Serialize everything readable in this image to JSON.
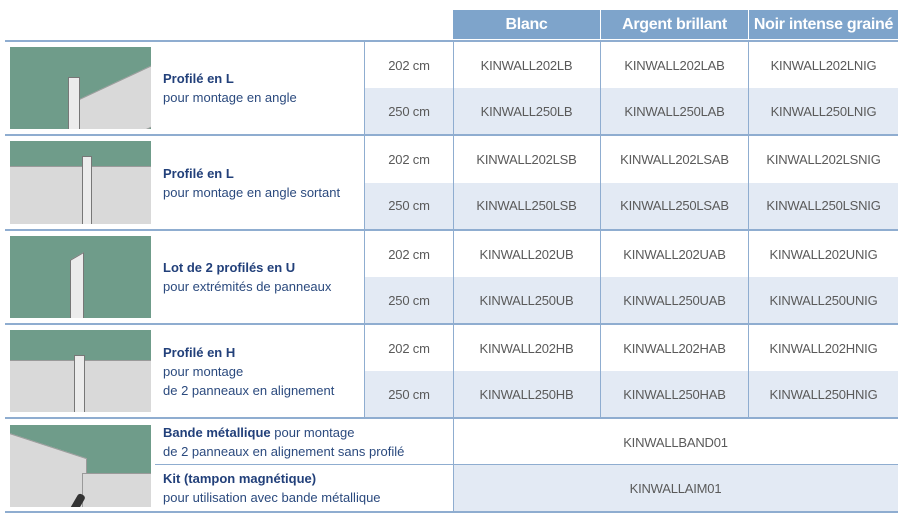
{
  "header": {
    "columns": [
      "Blanc",
      "Argent brillant",
      "Noir intense grainé"
    ]
  },
  "products": [
    {
      "title": "Profilé en L",
      "subtitle": [
        "pour montage en angle"
      ],
      "image": "corner-profile-image",
      "rows": [
        {
          "size": "202 cm",
          "codes": [
            "KINWALL202LB",
            "KINWALL202LAB",
            "KINWALL202LNIG"
          ]
        },
        {
          "size": "250 cm",
          "codes": [
            "KINWALL250LB",
            "KINWALL250LAB",
            "KINWALL250LNIG"
          ]
        }
      ]
    },
    {
      "title": "Profilé en L",
      "subtitle": [
        "pour montage en angle sortant"
      ],
      "image": "outer-corner-profile-image",
      "rows": [
        {
          "size": "202 cm",
          "codes": [
            "KINWALL202LSB",
            "KINWALL202LSAB",
            "KINWALL202LSNIG"
          ]
        },
        {
          "size": "250 cm",
          "codes": [
            "KINWALL250LSB",
            "KINWALL250LSAB",
            "KINWALL250LSNIG"
          ]
        }
      ]
    },
    {
      "title": "Lot de 2 profilés en U",
      "subtitle": [
        "pour extrémités de panneaux"
      ],
      "image": "u-profile-image",
      "rows": [
        {
          "size": "202 cm",
          "codes": [
            "KINWALL202UB",
            "KINWALL202UAB",
            "KINWALL202UNIG"
          ]
        },
        {
          "size": "250 cm",
          "codes": [
            "KINWALL250UB",
            "KINWALL250UAB",
            "KINWALL250UNIG"
          ]
        }
      ]
    },
    {
      "title": "Profilé en H",
      "subtitle": [
        "pour montage",
        "de 2 panneaux en alignement"
      ],
      "image": "h-profile-image",
      "rows": [
        {
          "size": "202 cm",
          "codes": [
            "KINWALL202HB",
            "KINWALL202HAB",
            "KINWALL202HNIG"
          ]
        },
        {
          "size": "250 cm",
          "codes": [
            "KINWALL250HB",
            "KINWALL250HAB",
            "KINWALL250HNIG"
          ]
        }
      ]
    }
  ],
  "accessories": [
    {
      "title": "Bande métallique",
      "title_rest": " pour montage",
      "subtitle": "de 2 panneaux en alignement sans profilé",
      "code": "KINWALLBAND01"
    },
    {
      "title": "Kit (tampon magnétique)",
      "subtitle": "pour utilisation avec bande métallique",
      "code": "KINWALLAIM01"
    }
  ]
}
